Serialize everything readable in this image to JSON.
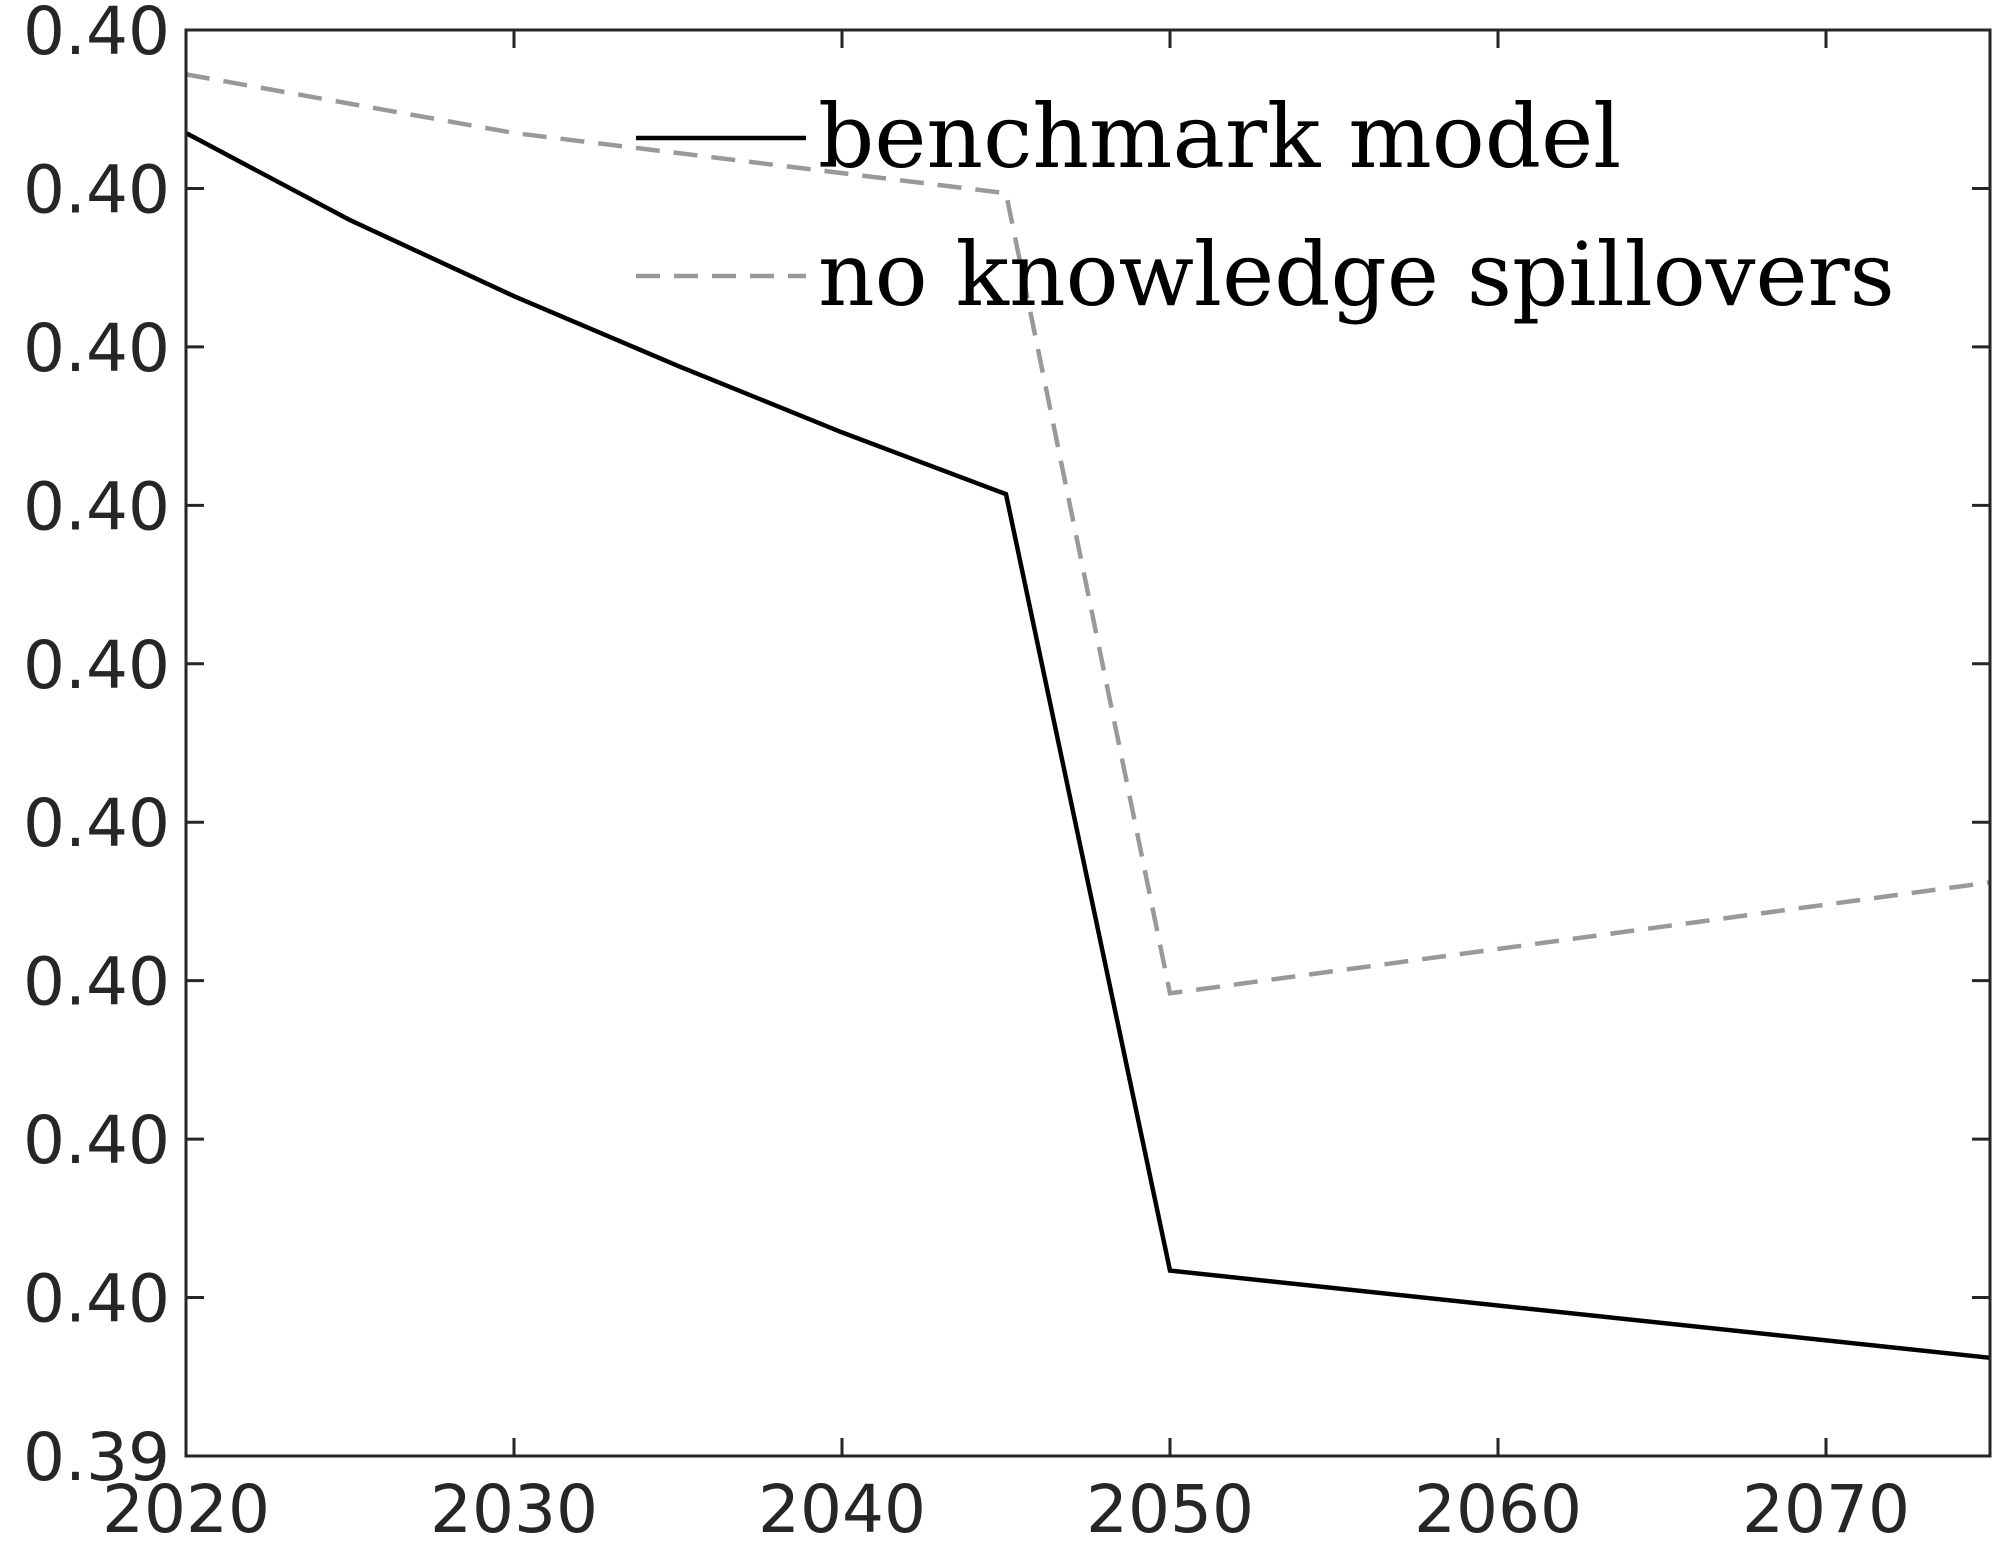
{
  "chart_data": {
    "type": "line",
    "title": "",
    "xlabel": "",
    "ylabel": "",
    "xlim": [
      2020,
      2075
    ],
    "x_ticks": [
      2020,
      2030,
      2040,
      2050,
      2060,
      2070
    ],
    "x_tick_labels": [
      "2020",
      "2030",
      "2040",
      "2050",
      "2060",
      "2070"
    ],
    "ylim": [
      0,
      9
    ],
    "y_ticks": [
      0,
      1,
      2,
      3,
      4,
      5,
      6,
      7,
      8,
      9
    ],
    "y_tick_labels": [
      "0.39",
      "0.40",
      "0.40",
      "0.40",
      "0.40",
      "0.40",
      "0.40",
      "0.40",
      "0.40",
      "0.40"
    ],
    "grid": false,
    "legend_position": "top-right",
    "series": [
      {
        "name": "benchmark model",
        "style": "solid",
        "color": "#000000",
        "x": [
          2020,
          2025,
          2030,
          2035,
          2040,
          2045,
          2050,
          2075
        ],
        "y": [
          8.35,
          7.8,
          7.32,
          6.88,
          6.46,
          6.07,
          1.17,
          0.62
        ]
      },
      {
        "name": "no knowledge spillovers",
        "style": "dashed",
        "color": "#999999",
        "x": [
          2020,
          2030,
          2045,
          2050,
          2075
        ],
        "y": [
          8.72,
          8.35,
          7.97,
          2.92,
          3.62
        ]
      }
    ]
  }
}
